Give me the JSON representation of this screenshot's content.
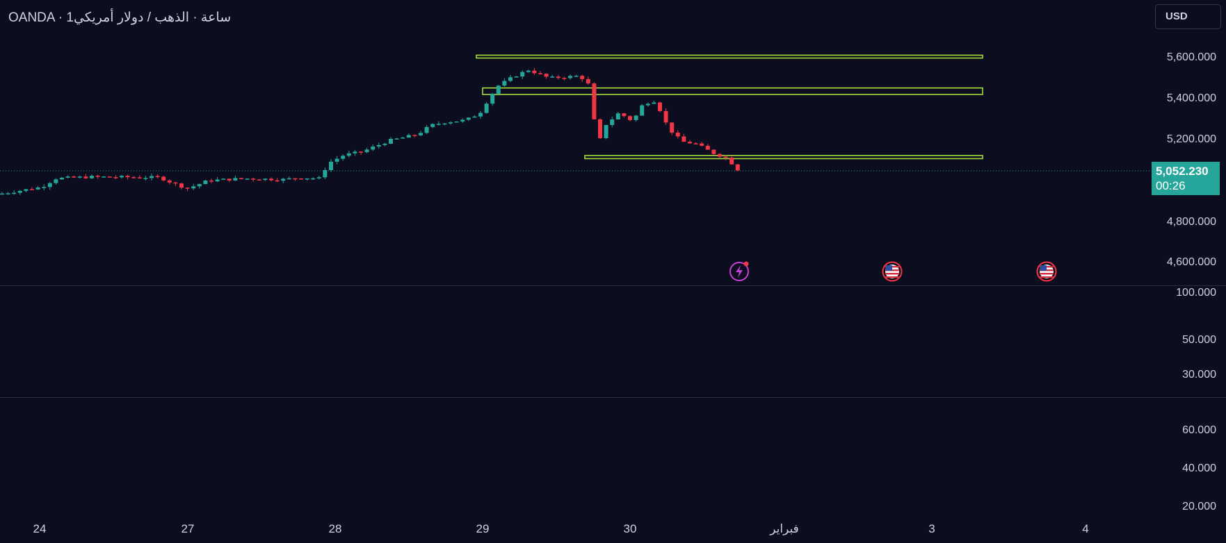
{
  "header": {
    "title": "OANDA · 1ساعة · الذهب / دولار أمريكي",
    "currency_label": "USD"
  },
  "price_axis": {
    "ticks": [
      "5,600.000",
      "5,400.000",
      "5,200.000",
      "4,800.000",
      "4,600.000"
    ],
    "last_price": "5,052.230",
    "countdown": "00:26"
  },
  "indicator_pane_1": {
    "ticks": [
      "100.000",
      "50.000",
      "30.000"
    ]
  },
  "indicator_pane_2": {
    "ticks": [
      "60.000",
      "40.000",
      "20.000"
    ]
  },
  "time_axis": {
    "ticks": [
      "24",
      "27",
      "28",
      "29",
      "30",
      "فبراير",
      "3",
      "4"
    ]
  },
  "colors": {
    "background": "#0c0e20",
    "up_candle": "#26a69a",
    "down_candle": "#f23645",
    "zone_stroke": "#a4dd3c",
    "last_price": "#26a69a"
  },
  "zones": [
    {
      "name": "resistance-zone-top",
      "low": 5598,
      "high": 5612
    },
    {
      "name": "resistance-zone-mid",
      "low": 5420,
      "high": 5452
    },
    {
      "name": "support-zone",
      "low": 5107,
      "high": 5122
    }
  ],
  "events": [
    {
      "name": "lightning-event-icon",
      "kind": "lightning"
    },
    {
      "name": "us-flag-event-icon",
      "kind": "us-flag"
    },
    {
      "name": "us-flag-event-icon",
      "kind": "us-flag"
    }
  ]
}
